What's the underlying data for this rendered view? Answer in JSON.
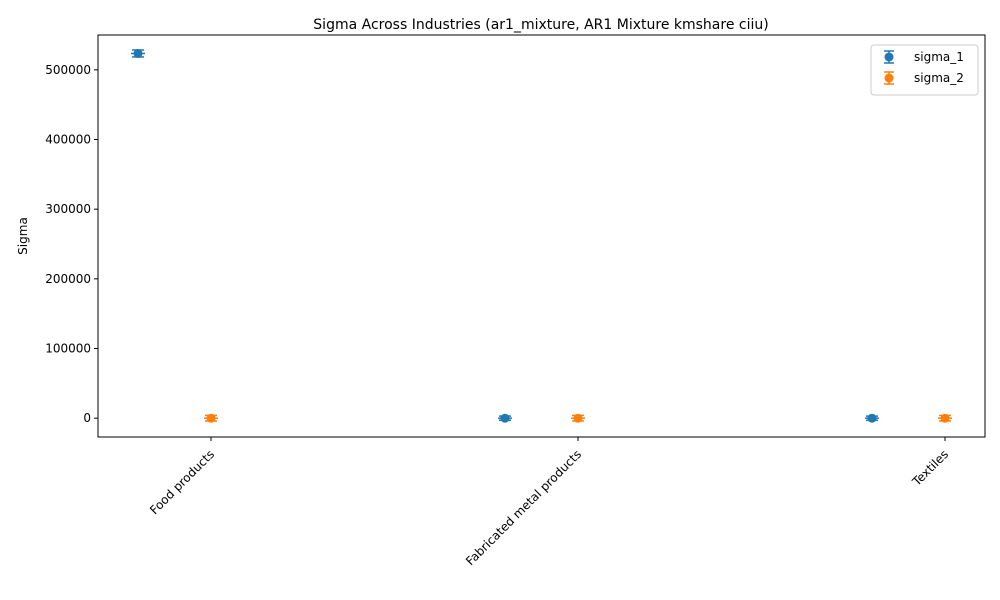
{
  "chart_data": {
    "type": "scatter",
    "title": "Sigma Across Industries (ar1_mixture, AR1 Mixture kmshare ciiu)",
    "xlabel": "",
    "ylabel": "Sigma",
    "categories": [
      "Food products",
      "Fabricated metal products",
      "Textiles"
    ],
    "ylim": [
      -27000,
      550000
    ],
    "yticks": [
      0,
      100000,
      200000,
      300000,
      400000,
      500000
    ],
    "grid": false,
    "legend_position": "top-right",
    "series": [
      {
        "name": "sigma_1",
        "color": "#1f77b4",
        "values": [
          523500,
          0,
          0
        ],
        "errors": [
          5000,
          3000,
          3000
        ]
      },
      {
        "name": "sigma_2",
        "color": "#ff7f0e",
        "values": [
          0,
          0,
          0
        ],
        "errors": [
          4000,
          4000,
          4000
        ]
      }
    ]
  }
}
